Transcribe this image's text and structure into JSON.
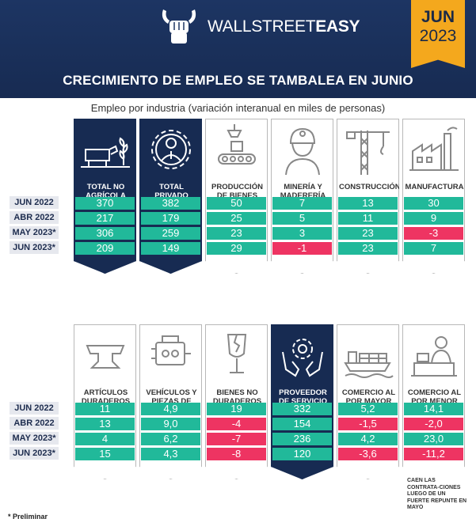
{
  "header": {
    "brand_light": "WALLSTREET",
    "brand_bold": "EASY",
    "badge_month": "JUN",
    "badge_year": "2023",
    "title": "CRECIMIENTO DE EMPLEO SE TAMBALEA EN JUNIO",
    "subtitle": "Empleo por industria (variación interanual en miles de personas)"
  },
  "colors": {
    "navy": "#172b52",
    "accent_orange": "#f4a81d",
    "positive": "#21b99a",
    "negative": "#ee3462",
    "row_label_bg": "#e6e8ee"
  },
  "chart_data": {
    "type": "table",
    "title": "CRECIMIENTO DE EMPLEO SE TAMBALEA EN JUNIO",
    "subtitle": "Empleo por industria (variación interanual en miles de personas)",
    "row_labels": [
      "JUN 2022",
      "ABR 2022",
      "MAY 2023*",
      "JUN 2023*"
    ],
    "groups": [
      {
        "columns": [
          {
            "label": "TOTAL NO AGRÍCOLA",
            "icon": "farm-cow-icon",
            "highlight": true,
            "values": [
              "370",
              "217",
              "306",
              "209"
            ]
          },
          {
            "label": "TOTAL PRIVADO",
            "icon": "private-worker-gear-icon",
            "highlight": true,
            "values": [
              "382",
              "179",
              "259",
              "149"
            ]
          },
          {
            "label": "PRODUCCIÓN DE BIENES",
            "icon": "conveyor-belt-icon",
            "highlight": false,
            "values": [
              "50",
              "25",
              "23",
              "29"
            ]
          },
          {
            "label": "MINERÍA Y MADERERÍA",
            "icon": "miner-helmet-icon",
            "highlight": false,
            "values": [
              "7",
              "5",
              "3",
              "-1"
            ]
          },
          {
            "label": "CONSTRUCCIÓN",
            "icon": "crane-icon",
            "highlight": false,
            "values": [
              "13",
              "11",
              "23",
              "23"
            ]
          },
          {
            "label": "MANUFACTURA",
            "icon": "factory-icon",
            "highlight": false,
            "values": [
              "30",
              "9",
              "-3",
              "7"
            ]
          }
        ]
      },
      {
        "columns": [
          {
            "label": "ARTÍCULOS DURADEROS",
            "icon": "anvil-icon",
            "highlight": false,
            "values": [
              "11",
              "13",
              "4",
              "15"
            ]
          },
          {
            "label": "VEHÍCULOS Y PIEZAS DE MOTOR",
            "icon": "engine-icon",
            "highlight": false,
            "values": [
              "4,9",
              "9,0",
              "6,2",
              "4,3"
            ]
          },
          {
            "label": "BIENES NO DURADEROS",
            "icon": "fragile-glass-icon",
            "highlight": false,
            "values": [
              "19",
              "-4",
              "-7",
              "-8"
            ]
          },
          {
            "label": "PROVEEDOR DE SERVICIO PRIVADO",
            "icon": "hands-gear-icon",
            "highlight": true,
            "values": [
              "332",
              "154",
              "236",
              "120"
            ]
          },
          {
            "label": "COMERCIO AL POR MAYOR",
            "icon": "cargo-ship-icon",
            "highlight": false,
            "values": [
              "5,2",
              "-1,5",
              "4,2",
              "-3,6"
            ]
          },
          {
            "label": "COMERCIO AL POR MENOR",
            "icon": "shop-clerk-icon",
            "highlight": false,
            "values": [
              "14,1",
              "-2,0",
              "23,0",
              "-11,2"
            ]
          }
        ]
      }
    ]
  },
  "footnote": "* Preliminar",
  "note": "CAEN LAS CONTRATA-CIONES LUEGO DE UN FUERTE REPUNTE EN MAYO"
}
